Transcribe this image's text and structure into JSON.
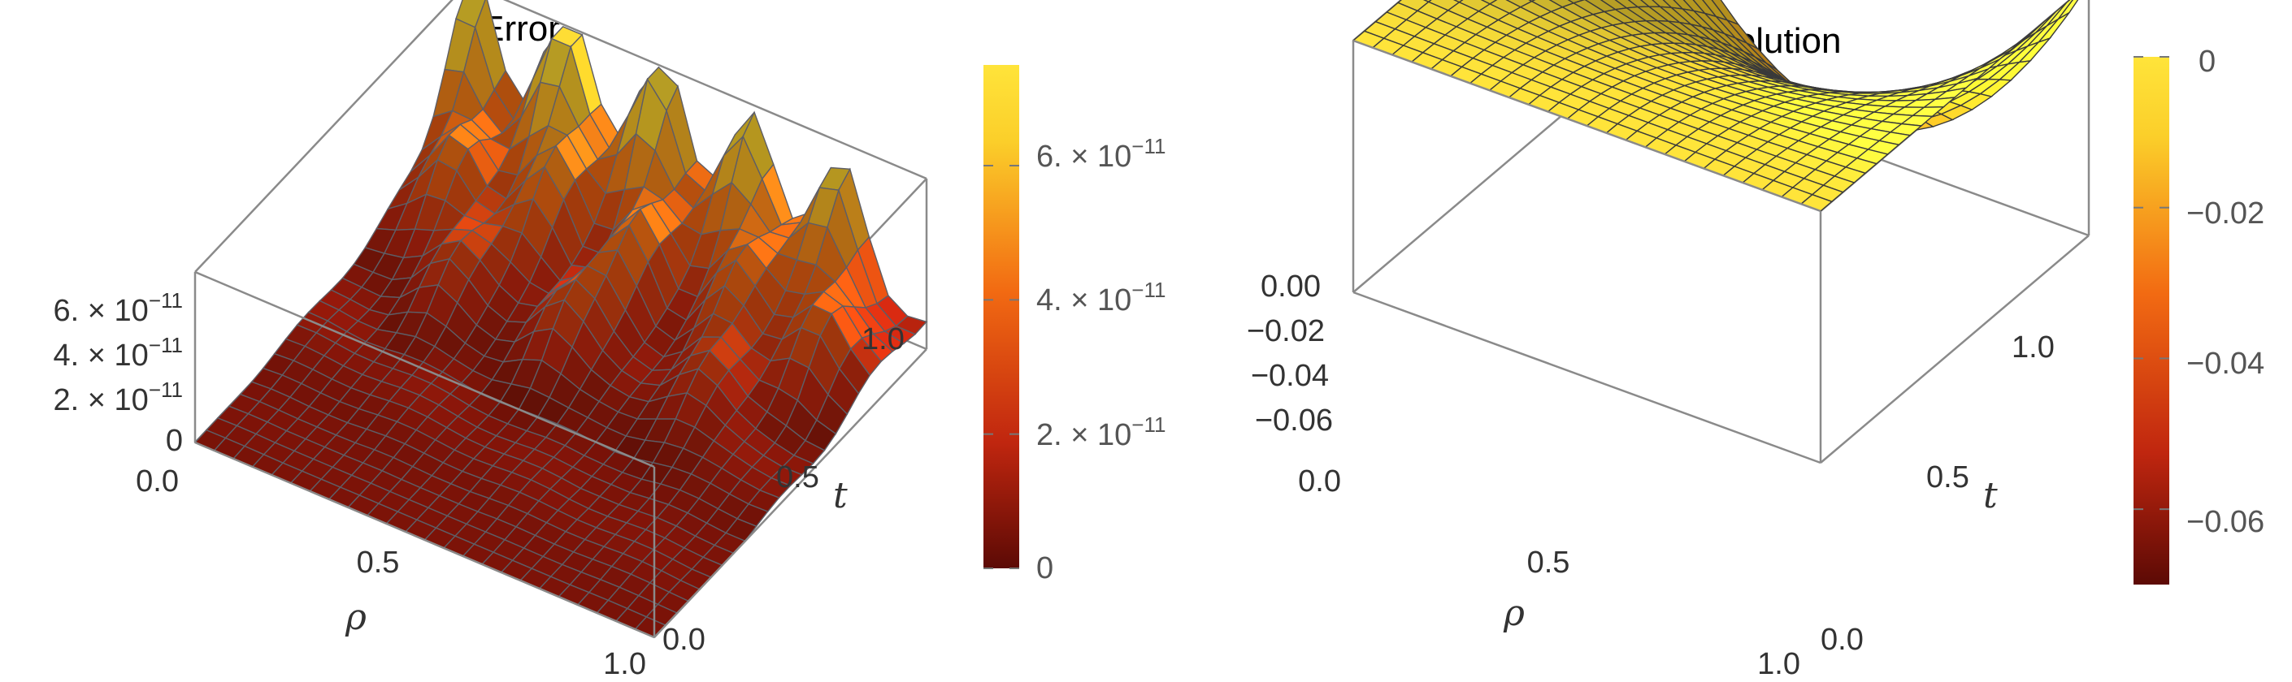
{
  "chart_data": [
    {
      "type": "surface3d",
      "title": "Error",
      "xlabel": "ρ",
      "ylabel": "t",
      "zlabel": "",
      "xlim": [
        0,
        1
      ],
      "ylim": [
        0,
        1
      ],
      "zlim": [
        0,
        7.5e-11
      ],
      "x_ticks": [
        "0.0",
        "0.5",
        "1.0"
      ],
      "y_ticks": [
        "0.0",
        "0.5",
        "1.0"
      ],
      "z_ticks": [
        {
          "mant": "0",
          "exp": ""
        },
        {
          "mant": "2. × 10",
          "exp": "−11"
        },
        {
          "mant": "4. × 10",
          "exp": "−11"
        },
        {
          "mant": "6. × 10",
          "exp": "−11"
        }
      ],
      "z_tick_values": [
        0,
        2e-11,
        4e-11,
        6e-11
      ],
      "colorbar": {
        "range": [
          0,
          7.5e-11
        ],
        "ticks": [
          {
            "mant": "0",
            "exp": ""
          },
          {
            "mant": "2. × 10",
            "exp": "−11"
          },
          {
            "mant": "4. × 10",
            "exp": "−11"
          },
          {
            "mant": "6. × 10",
            "exp": "−11"
          }
        ],
        "tick_values": [
          0,
          2e-11,
          4e-11,
          6e-11
        ]
      },
      "colormap": [
        "#5c0a05",
        "#c0260f",
        "#f26a12",
        "#fbcf2a",
        "#ffe43a"
      ],
      "surface_description": "near zero for small t, rising with t to peaks around 7e-11 at t=1"
    },
    {
      "type": "surface3d",
      "title": "Approximate  solution",
      "xlabel": "ρ",
      "ylabel": "t",
      "zlabel": "",
      "xlim": [
        0,
        1
      ],
      "ylim": [
        0,
        1
      ],
      "zlim": [
        -0.07,
        0
      ],
      "x_ticks": [
        "0.0",
        "0.5",
        "1.0"
      ],
      "y_ticks": [
        "0.0",
        "0.5",
        "1.0"
      ],
      "z_ticks": [
        "−0.06",
        "−0.04",
        "−0.02",
        "0.00"
      ],
      "z_tick_values": [
        -0.06,
        -0.04,
        -0.02,
        0
      ],
      "colorbar": {
        "range": [
          -0.07,
          0
        ],
        "ticks": [
          "−0.06",
          "−0.04",
          "−0.02",
          "0"
        ],
        "tick_values": [
          -0.06,
          -0.04,
          -0.02,
          0
        ]
      },
      "colormap": [
        "#5c0a05",
        "#c0260f",
        "#f26a12",
        "#fbcf2a",
        "#ffe43a"
      ],
      "surface_description": "zero along t=0 and along ρ=0 and ρ=1, dipping to about -0.0625 at ρ=0.5, t=1"
    }
  ]
}
